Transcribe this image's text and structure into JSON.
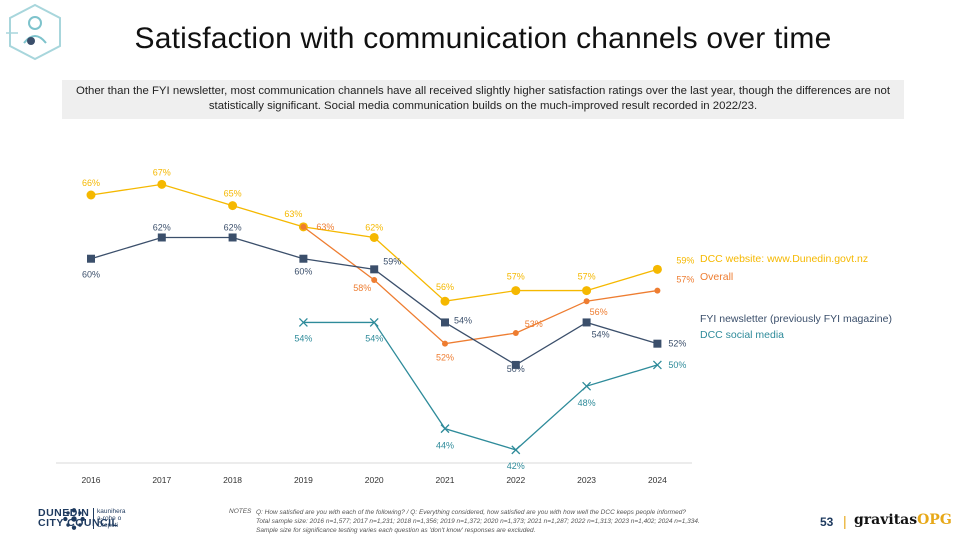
{
  "title": "Satisfaction with communication channels over time",
  "summary": "Other than the FYI newsletter, most communication channels have all received slightly higher satisfaction ratings over the last year, though the differences are not statistically significant.  Social media communication builds on the much-improved result recorded in 2022/23.",
  "chart_data": {
    "type": "line",
    "x": [
      "2016",
      "2017",
      "2018",
      "2019",
      "2020",
      "2021",
      "2022",
      "2023",
      "2024"
    ],
    "ylim": [
      30,
      70
    ],
    "grid": false,
    "legend_placement": "right",
    "series": [
      {
        "name": "DCC website: www.Dunedin.govt.nz",
        "color": "#f5b800",
        "marker": "circle",
        "values": [
          66,
          67,
          65,
          63,
          62,
          56,
          57,
          57,
          59
        ],
        "labels": [
          "66%",
          "67%",
          "65%",
          "63%",
          "62%",
          "56%",
          "57%",
          "57%",
          "59%"
        ]
      },
      {
        "name": "Overall",
        "color": "#ee7d31",
        "marker": "small-circle",
        "values": [
          null,
          null,
          null,
          63,
          58,
          52,
          53,
          56,
          57
        ],
        "labels": [
          "",
          "",
          "",
          "63%",
          "58%",
          "52%",
          "53%",
          "56%",
          "57%"
        ]
      },
      {
        "name": "FYI newsletter (previously FYI magazine)",
        "color": "#3b4f6b",
        "marker": "square",
        "values": [
          60,
          62,
          62,
          60,
          59,
          54,
          50,
          54,
          52
        ],
        "labels": [
          "60%",
          "62%",
          "62%",
          "60%",
          "59%",
          "54%",
          "50%",
          "54%",
          "52%"
        ]
      },
      {
        "name": "DCC social media",
        "color": "#2e8b9a",
        "marker": "x",
        "values": [
          null,
          null,
          null,
          54,
          54,
          44,
          42,
          48,
          50
        ],
        "labels": [
          "",
          "",
          "",
          "54%",
          "54%",
          "44%",
          "42%",
          "48%",
          "50%"
        ]
      }
    ]
  },
  "footer": {
    "council_name_1": "DUNEDIN",
    "council_name_2": "CITY COUNCIL",
    "council_maori_1": "kaunihera",
    "council_maori_2": "a-rohe o",
    "council_maori_3": "Ōtepoti",
    "notes_label": "NOTES",
    "notes_line1": "Q: How satisfied are you with each of the following?  /   Q: Everything considered, how satisfied are you with how well the DCC keeps people informed?",
    "notes_line2": "Total sample size: 2016 n=1,577; 2017 n=1,231; 2018 n=1,356; 2019 n=1,372; 2020 n=1,373; 2021 n=1,287; 2022 n=1,313; 2023 n=1,402; 2024 n=1,334.",
    "notes_line3": "Sample size for significance testing varies each question as 'don't know' responses are excluded.",
    "page_number": "53",
    "separator": "|",
    "brand_main": "gravitas",
    "brand_accent": "OPG"
  },
  "colors": {
    "accent": "#e7a818",
    "navy": "#1e3a5f",
    "teal": "#7ec3cc"
  }
}
